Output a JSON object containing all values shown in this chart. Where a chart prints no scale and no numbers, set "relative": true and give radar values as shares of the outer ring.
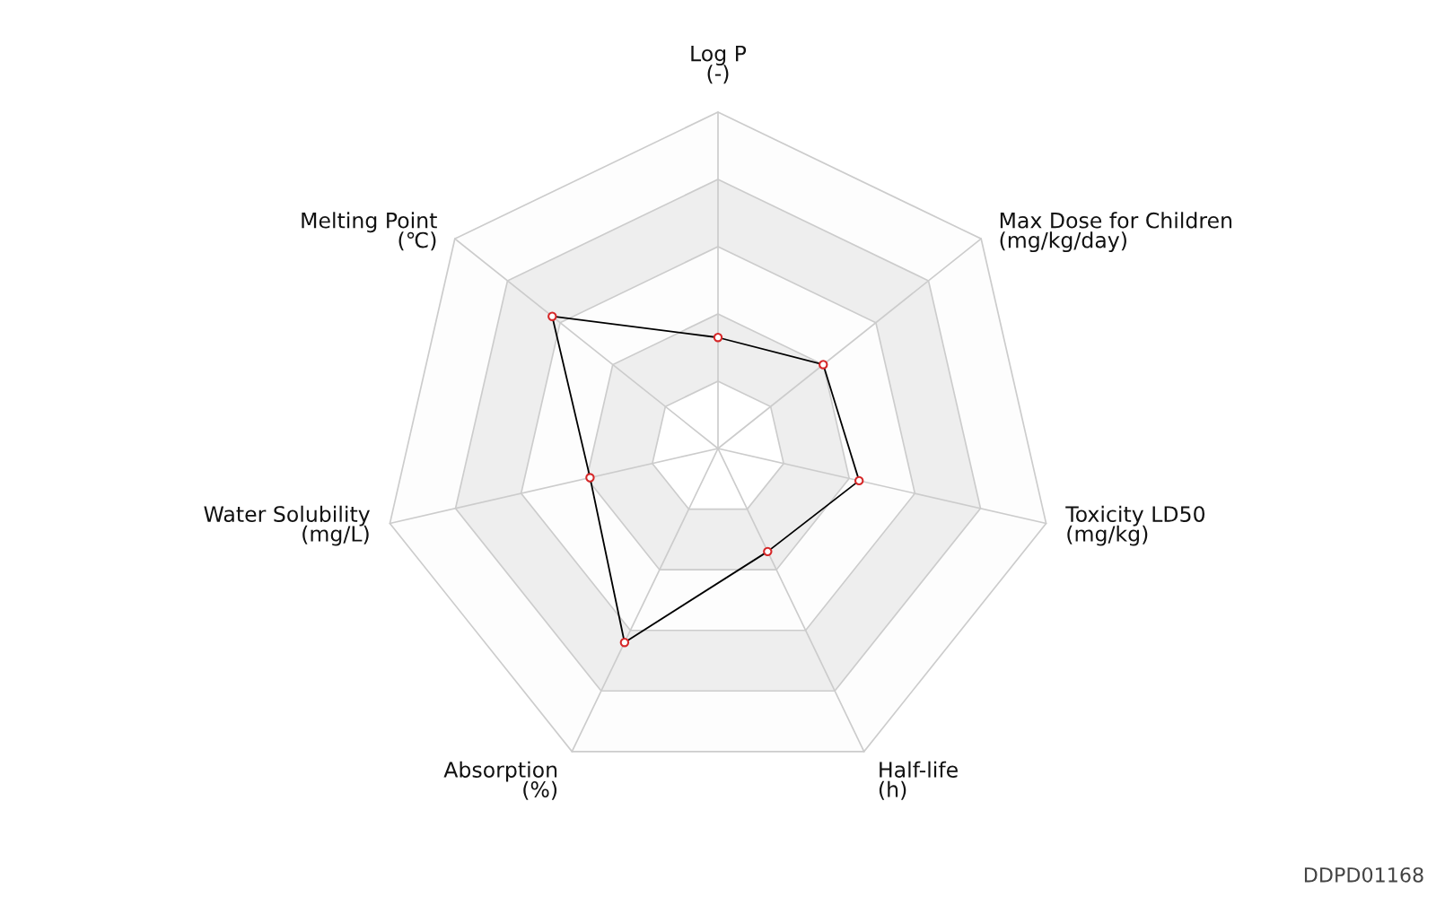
{
  "chart_data": {
    "type": "radar",
    "relative": true,
    "grid": true,
    "marker": "circle",
    "categories": [
      "Log P\n(-)",
      "Max Dose for Children\n(mg/kg/day)",
      "Toxicity LD50\n(mg/kg)",
      "Half-life\n(h)",
      "Absorption\n(%)",
      "Water Solubility\n(mg/L)",
      "Melting Point\n(℃)"
    ],
    "series": [
      {
        "color": "#000000",
        "values": [
          0.33,
          0.4,
          0.43,
          0.34,
          0.64,
          0.39,
          0.63
        ]
      }
    ],
    "annotations": [
      "DDPD01168"
    ]
  }
}
